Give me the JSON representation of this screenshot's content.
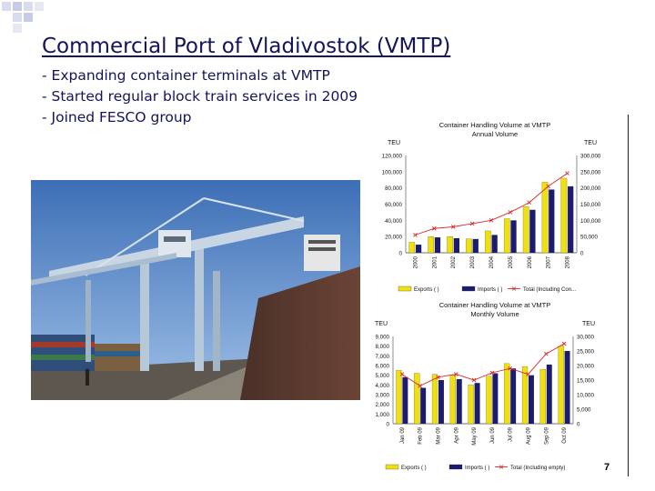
{
  "slide": {
    "title": "Commercial Port of Vladivostok (VMTP)",
    "bullets": [
      "- Expanding container terminals at VMTP",
      "- Started regular block train services in 2009",
      "- Joined FESCO group"
    ],
    "page_number": "7"
  },
  "colors": {
    "exports": "#f0e010",
    "imports": "#1c1c6e",
    "total": "#d42a2a",
    "title_text": "#14145a"
  },
  "chart_data": [
    {
      "type": "bar",
      "title": "Container Handling Volume at VMTP",
      "subtitle": "Annual Volume",
      "ylabel_left": "TEU",
      "ylabel_right": "TEU",
      "categories": [
        "2000",
        "2001",
        "2002",
        "2003",
        "2004",
        "2005",
        "2006",
        "2007",
        "2008"
      ],
      "ylim_left": [
        0,
        120000
      ],
      "ylim_right": [
        0,
        300000
      ],
      "left_ticks": [
        "0",
        "20,000",
        "40,000",
        "60,000",
        "80,000",
        "100,000",
        "120,000"
      ],
      "right_ticks": [
        "0",
        "50,000",
        "100,000",
        "150,000",
        "200,000",
        "250,000",
        "300,000"
      ],
      "series": [
        {
          "name": "Exports ( )",
          "axis": "left",
          "kind": "bar",
          "values": [
            13000,
            20000,
            20000,
            17000,
            27000,
            42000,
            57000,
            87000,
            92000
          ]
        },
        {
          "name": "Imports ( )",
          "axis": "left",
          "kind": "bar",
          "values": [
            10000,
            19000,
            18000,
            17000,
            22000,
            40000,
            53000,
            78000,
            82000
          ]
        },
        {
          "name": "Total (Including Con...",
          "axis": "right",
          "kind": "line",
          "values": [
            55000,
            75000,
            80000,
            90000,
            100000,
            125000,
            155000,
            205000,
            245000
          ]
        }
      ],
      "legend": "bottom"
    },
    {
      "type": "bar",
      "title": "Container Handling Volume at VMTP",
      "subtitle": "Monthly Volume",
      "ylabel_left": "TEU",
      "ylabel_right": "TEU",
      "categories": [
        "Jan 09",
        "Feb 09",
        "Mar 09",
        "Apr 09",
        "May 09",
        "Jun 09",
        "Jul 09",
        "Aug 09",
        "Sep 09",
        "Oct 09"
      ],
      "ylim_left": [
        0,
        9000
      ],
      "ylim_right": [
        0,
        30000
      ],
      "left_ticks": [
        "0",
        "1,000",
        "2,000",
        "3,000",
        "4,000",
        "5,000",
        "6,000",
        "7,000",
        "8,000",
        "9,000"
      ],
      "right_ticks": [
        "0",
        "5,000",
        "10,000",
        "15,000",
        "20,000",
        "25,000",
        "30,000"
      ],
      "series": [
        {
          "name": "Exports ( )",
          "axis": "left",
          "kind": "bar",
          "values": [
            5500,
            5200,
            5100,
            5000,
            4000,
            4900,
            6200,
            5900,
            5600,
            8000
          ]
        },
        {
          "name": "Imports ( )",
          "axis": "left",
          "kind": "bar",
          "values": [
            4800,
            3700,
            4500,
            4600,
            4200,
            5200,
            5700,
            5000,
            6100,
            7500
          ]
        },
        {
          "name": "Total (Including empty)",
          "axis": "right",
          "kind": "line",
          "values": [
            17000,
            13000,
            16000,
            17000,
            15000,
            17500,
            19000,
            17000,
            24000,
            27500
          ]
        }
      ],
      "legend": "bottom"
    }
  ]
}
